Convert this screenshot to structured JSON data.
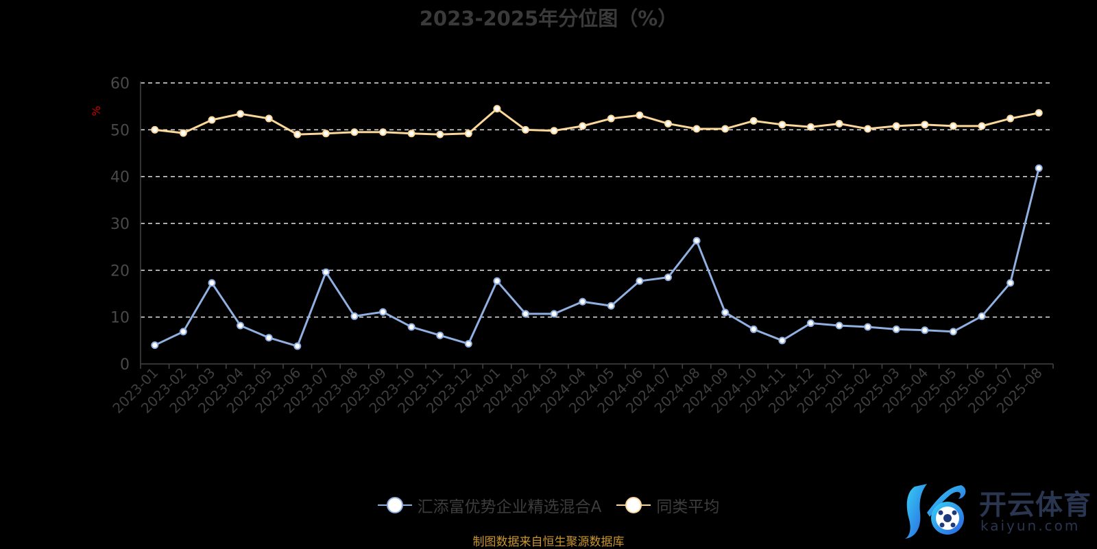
{
  "chart_data": {
    "type": "line",
    "title": "2023-2025年分位图（%）",
    "ylabel": "%",
    "xlabel": "",
    "ylim": [
      0,
      60
    ],
    "yticks": [
      0,
      10,
      20,
      30,
      40,
      50,
      60
    ],
    "grid": true,
    "legend_position": "bottom",
    "categories": [
      "2023-01",
      "2023-02",
      "2023-03",
      "2023-04",
      "2023-05",
      "2023-06",
      "2023-07",
      "2023-08",
      "2023-09",
      "2023-10",
      "2023-11",
      "2023-12",
      "2024-01",
      "2024-02",
      "2024-03",
      "2024-04",
      "2024-05",
      "2024-06",
      "2024-07",
      "2024-08",
      "2024-09",
      "2024-10",
      "2024-11",
      "2024-12",
      "2025-01",
      "2025-02",
      "2025-03",
      "2025-04",
      "2025-05",
      "2025-06",
      "2025-07",
      "2025-08"
    ],
    "series": [
      {
        "name": "汇添富优势企业精选混合A",
        "color": "#8fb0e0",
        "values": [
          4.0,
          6.9,
          17.3,
          8.2,
          5.6,
          3.8,
          19.6,
          10.2,
          11.1,
          7.9,
          6.1,
          4.3,
          17.7,
          10.7,
          10.7,
          13.3,
          12.4,
          17.7,
          18.5,
          26.3,
          11.0,
          7.4,
          5.0,
          8.7,
          8.2,
          7.9,
          7.4,
          7.2,
          6.9,
          10.2,
          17.3,
          41.8
        ]
      },
      {
        "name": "同类平均",
        "color": "#fcd79a",
        "values": [
          50.0,
          49.3,
          52.1,
          53.4,
          52.4,
          49.0,
          49.2,
          49.5,
          49.5,
          49.2,
          49.0,
          49.2,
          54.5,
          50.0,
          49.8,
          50.8,
          52.4,
          53.1,
          51.3,
          50.2,
          50.2,
          51.9,
          51.1,
          50.6,
          51.3,
          50.2,
          50.8,
          51.1,
          50.8,
          50.8,
          52.4,
          53.6
        ]
      }
    ]
  },
  "footer": {
    "source": "制图数据来自恒生聚源数据库"
  },
  "watermark": {
    "cn": "开云体育",
    "en": "kaiyun.com"
  }
}
